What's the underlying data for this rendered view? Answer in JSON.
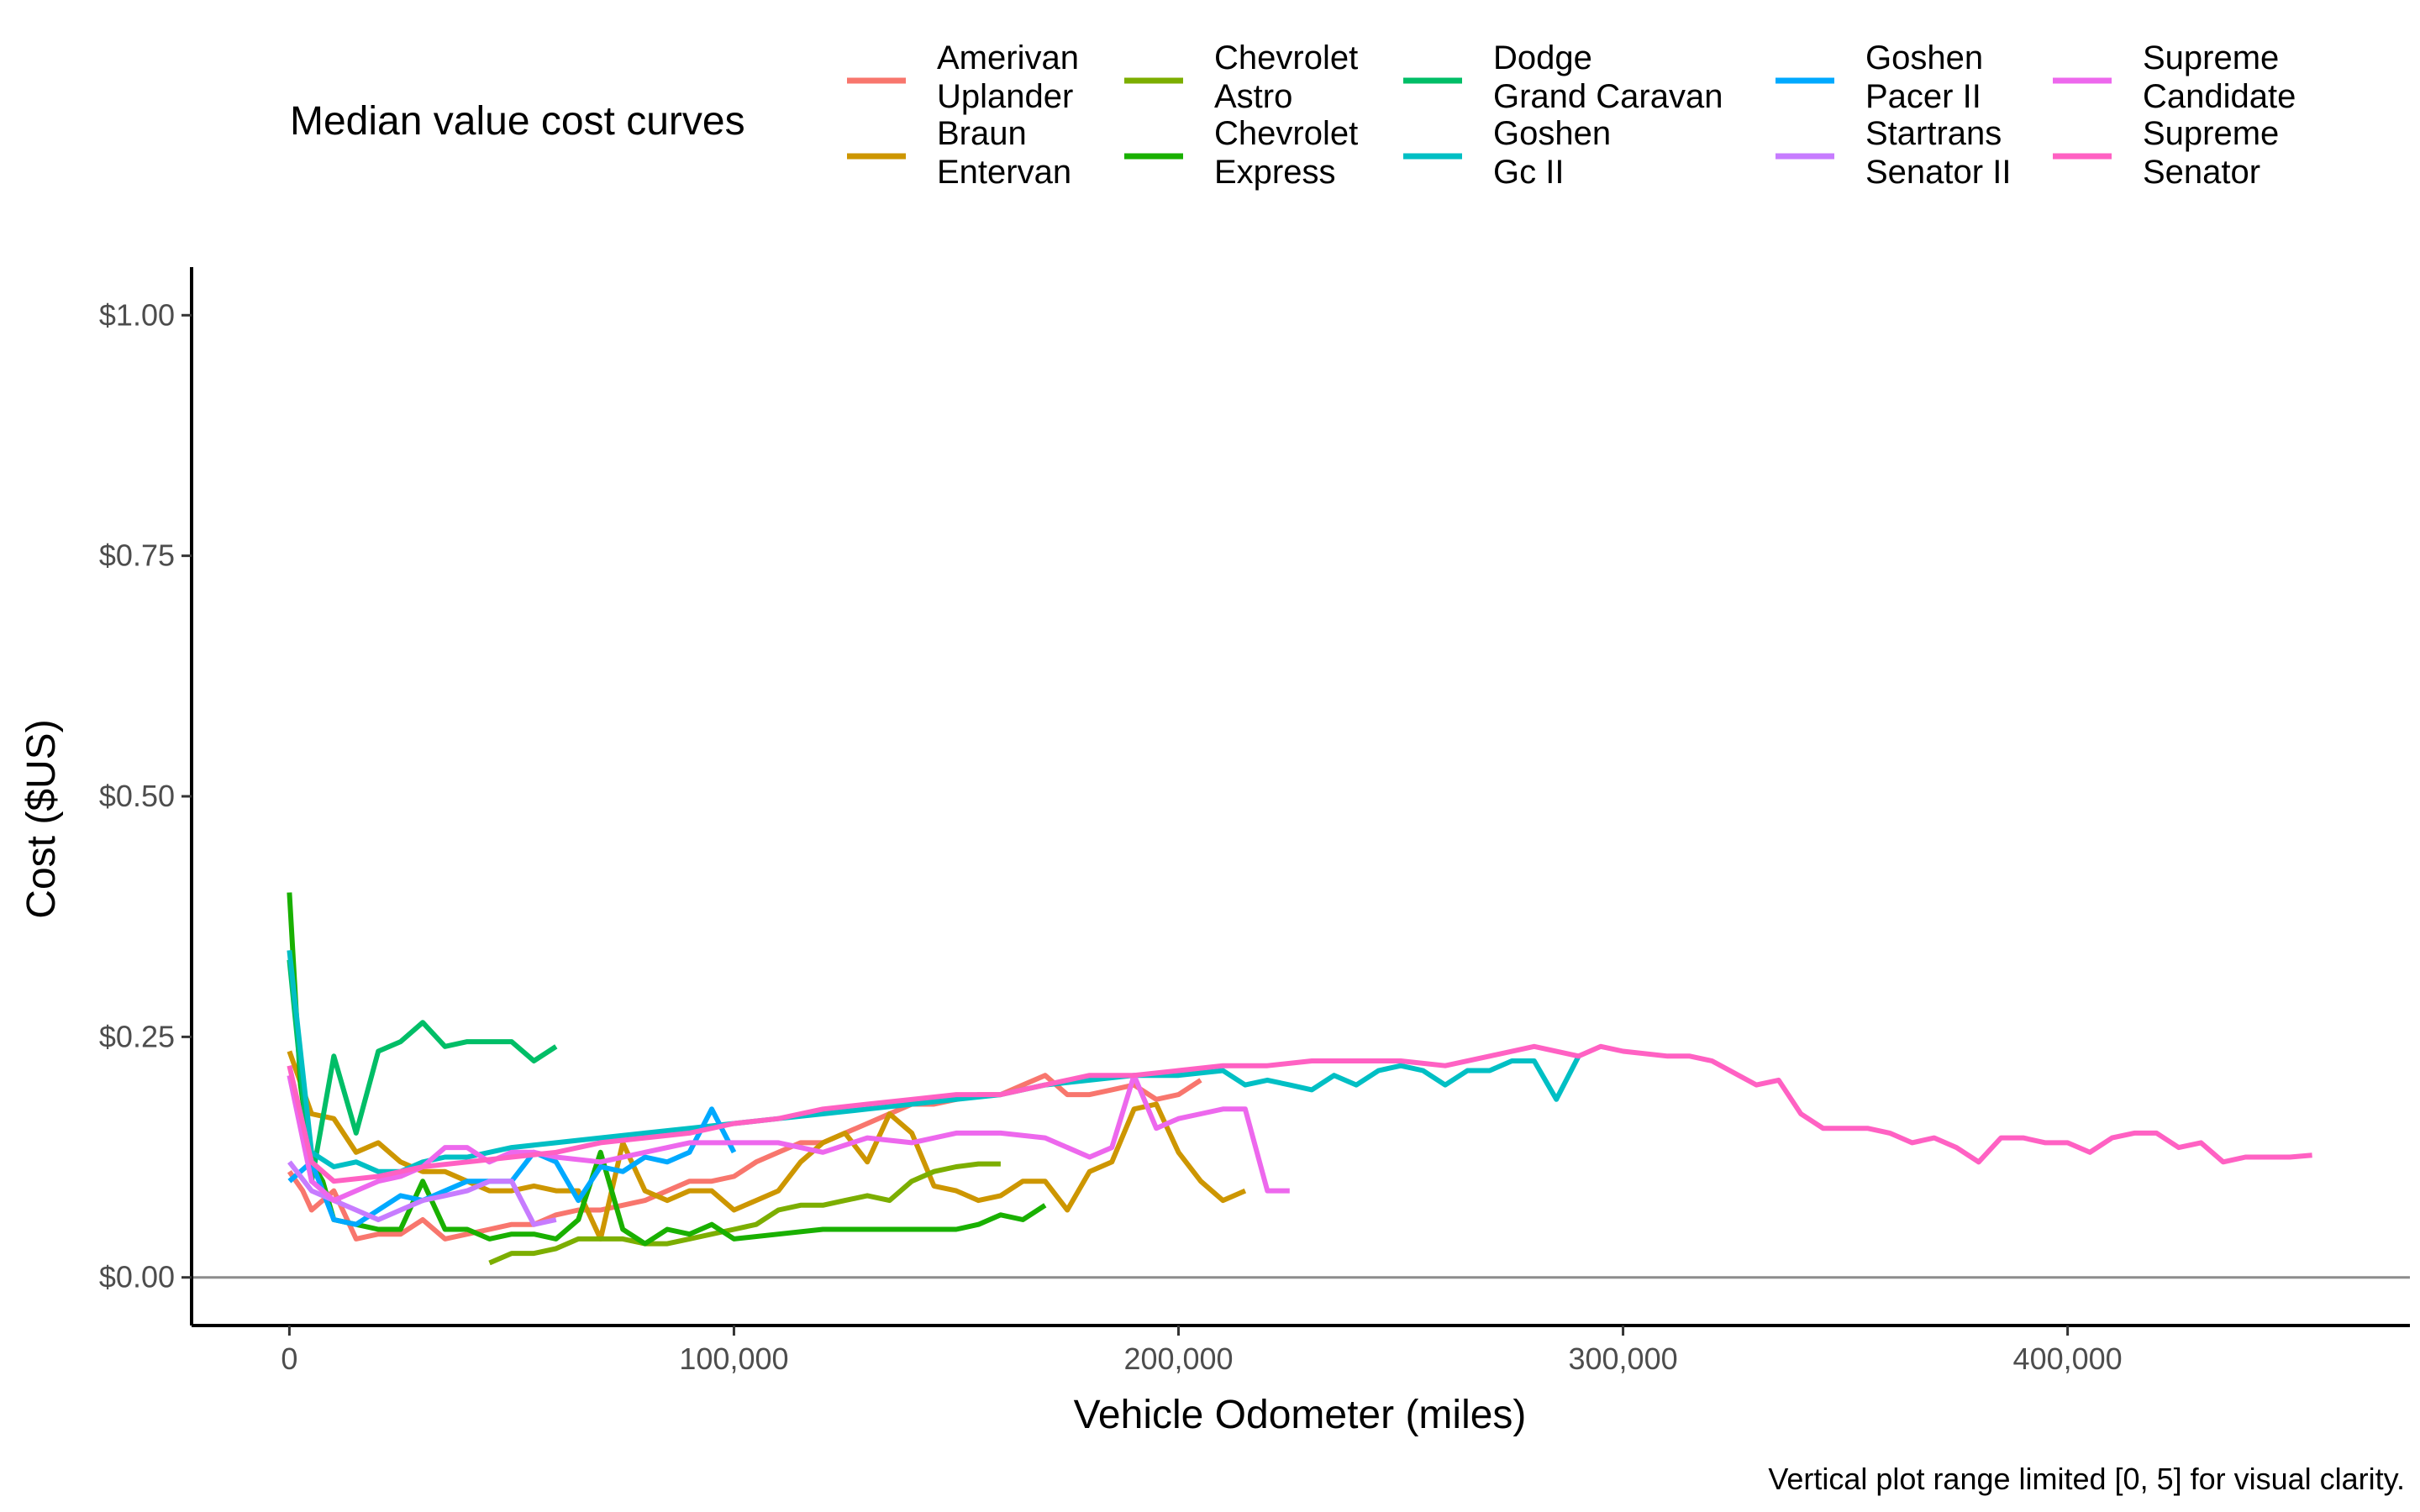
{
  "chart_data": {
    "type": "line",
    "title": "",
    "xlabel": "Vehicle Odometer (miles)",
    "ylabel": "Cost ($US)",
    "caption": "Vertical plot range limited [0, 5] for visual clarity.",
    "xlim": [
      -22000,
      477000
    ],
    "ylim": [
      -0.05,
      1.05
    ],
    "xticks": [
      0,
      100000,
      200000,
      300000,
      400000
    ],
    "xtick_labels": [
      "0",
      "100,000",
      "200,000",
      "300,000",
      "400,000"
    ],
    "yticks": [
      0,
      0.25,
      0.5,
      0.75,
      1.0
    ],
    "ytick_labels": [
      "$0.00",
      "$0.25",
      "$0.50",
      "$0.75",
      "$1.00"
    ],
    "hline": 0,
    "grid": false,
    "legend": {
      "title": "Median value cost curves",
      "position": "top",
      "entries": [
        {
          "line1": "Amerivan",
          "line2": "Uplander"
        },
        {
          "line1": "Braun",
          "line2": "Entervan"
        },
        {
          "line1": "Chevrolet",
          "line2": "Astro"
        },
        {
          "line1": "Chevrolet",
          "line2": "Express"
        },
        {
          "line1": "Dodge",
          "line2": "Grand Caravan"
        },
        {
          "line1": "Goshen",
          "line2": "Gc II"
        },
        {
          "line1": "Goshen",
          "line2": "Pacer II"
        },
        {
          "line1": "Startrans",
          "line2": "Senator II"
        },
        {
          "line1": "Supreme",
          "line2": "Candidate"
        },
        {
          "line1": "Supreme",
          "line2": "Senator"
        }
      ]
    },
    "series": [
      {
        "color": "#F8766D",
        "x": [
          0,
          3000,
          5000,
          10000,
          15000,
          20000,
          25000,
          30000,
          35000,
          40000,
          45000,
          50000,
          55000,
          60000,
          65000,
          70000,
          75000,
          80000,
          85000,
          90000,
          95000,
          100000,
          105000,
          110000,
          115000,
          120000,
          125000,
          130000,
          135000,
          140000,
          145000,
          150000,
          155000,
          160000,
          165000,
          170000,
          175000,
          180000,
          185000,
          190000,
          195000,
          200000,
          205000
        ],
        "y": [
          0.11,
          0.09,
          0.07,
          0.09,
          0.04,
          0.045,
          0.045,
          0.06,
          0.04,
          0.045,
          0.05,
          0.055,
          0.055,
          0.065,
          0.07,
          0.07,
          0.075,
          0.08,
          0.09,
          0.1,
          0.1,
          0.105,
          0.12,
          0.13,
          0.14,
          0.14,
          0.15,
          0.16,
          0.17,
          0.18,
          0.18,
          0.185,
          0.19,
          0.19,
          0.2,
          0.21,
          0.19,
          0.19,
          0.195,
          0.2,
          0.185,
          0.19,
          0.205
        ]
      },
      {
        "color": "#CD9600",
        "x": [
          0,
          5000,
          10000,
          15000,
          20000,
          25000,
          30000,
          35000,
          40000,
          45000,
          50000,
          55000,
          60000,
          65000,
          70000,
          75000,
          80000,
          85000,
          90000,
          95000,
          100000,
          105000,
          110000,
          115000,
          120000,
          125000,
          130000,
          135000,
          140000,
          145000,
          150000,
          155000,
          160000,
          165000,
          170000,
          175000,
          180000,
          185000,
          190000,
          195000,
          200000,
          205000,
          210000,
          215000
        ],
        "y": [
          0.235,
          0.17,
          0.165,
          0.13,
          0.14,
          0.12,
          0.11,
          0.11,
          0.1,
          0.09,
          0.09,
          0.095,
          0.09,
          0.09,
          0.04,
          0.14,
          0.09,
          0.08,
          0.09,
          0.09,
          0.07,
          0.08,
          0.09,
          0.12,
          0.14,
          0.15,
          0.12,
          0.17,
          0.15,
          0.095,
          0.09,
          0.08,
          0.085,
          0.1,
          0.1,
          0.07,
          0.11,
          0.12,
          0.175,
          0.18,
          0.13,
          0.1,
          0.08,
          0.09
        ]
      },
      {
        "color": "#7CAE00",
        "x": [
          45000,
          50000,
          55000,
          60000,
          65000,
          70000,
          75000,
          80000,
          85000,
          90000,
          95000,
          100000,
          105000,
          110000,
          115000,
          120000,
          125000,
          130000,
          135000,
          140000,
          145000,
          150000,
          155000,
          160000
        ],
        "y": [
          0.015,
          0.025,
          0.025,
          0.03,
          0.04,
          0.04,
          0.04,
          0.035,
          0.035,
          0.04,
          0.045,
          0.05,
          0.055,
          0.07,
          0.075,
          0.075,
          0.08,
          0.085,
          0.08,
          0.1,
          0.11,
          0.115,
          0.118,
          0.118
        ]
      },
      {
        "color": "#19B000",
        "x": [
          0,
          2500,
          5000,
          7500,
          10000,
          15000,
          20000,
          25000,
          30000,
          35000,
          40000,
          45000,
          50000,
          55000,
          60000,
          65000,
          70000,
          75000,
          80000,
          85000,
          90000,
          95000,
          100000,
          110000,
          120000,
          130000,
          140000,
          150000,
          155000,
          160000,
          165000,
          170000
        ],
        "y": [
          0.4,
          0.2,
          0.12,
          0.1,
          0.06,
          0.055,
          0.05,
          0.05,
          0.1,
          0.05,
          0.05,
          0.04,
          0.045,
          0.045,
          0.04,
          0.06,
          0.13,
          0.05,
          0.035,
          0.05,
          0.045,
          0.055,
          0.04,
          0.045,
          0.05,
          0.05,
          0.05,
          0.05,
          0.055,
          0.065,
          0.06,
          0.075
        ]
      },
      {
        "color": "#00BE67",
        "x": [
          0,
          5000,
          10000,
          15000,
          20000,
          25000,
          30000,
          35000,
          40000,
          45000,
          50000,
          55000,
          60000
        ],
        "y": [
          0.33,
          0.1,
          0.23,
          0.15,
          0.235,
          0.245,
          0.265,
          0.24,
          0.245,
          0.245,
          0.245,
          0.225,
          0.24
        ]
      },
      {
        "color": "#00BFC4",
        "x": [
          0,
          5000,
          10000,
          15000,
          20000,
          25000,
          30000,
          35000,
          40000,
          45000,
          50000,
          60000,
          70000,
          80000,
          90000,
          100000,
          110000,
          120000,
          130000,
          140000,
          150000,
          160000,
          170000,
          180000,
          190000,
          200000,
          210000,
          215000,
          220000,
          225000,
          230000,
          235000,
          240000,
          245000,
          250000,
          255000,
          260000,
          265000,
          270000,
          275000,
          280000,
          285000,
          290000
        ],
        "y": [
          0.34,
          0.13,
          0.115,
          0.12,
          0.11,
          0.11,
          0.12,
          0.125,
          0.125,
          0.13,
          0.135,
          0.14,
          0.145,
          0.15,
          0.155,
          0.16,
          0.165,
          0.17,
          0.175,
          0.18,
          0.185,
          0.19,
          0.2,
          0.205,
          0.21,
          0.21,
          0.215,
          0.2,
          0.205,
          0.2,
          0.195,
          0.21,
          0.2,
          0.215,
          0.22,
          0.215,
          0.2,
          0.215,
          0.215,
          0.225,
          0.225,
          0.185,
          0.23
        ]
      },
      {
        "color": "#00A9FF",
        "x": [
          0,
          5000,
          10000,
          15000,
          20000,
          25000,
          30000,
          35000,
          40000,
          45000,
          50000,
          55000,
          60000,
          65000,
          70000,
          75000,
          80000,
          85000,
          90000,
          95000,
          100000
        ],
        "y": [
          0.1,
          0.12,
          0.06,
          0.055,
          0.07,
          0.085,
          0.08,
          0.09,
          0.1,
          0.1,
          0.1,
          0.13,
          0.12,
          0.08,
          0.115,
          0.11,
          0.125,
          0.12,
          0.13,
          0.175,
          0.13
        ]
      },
      {
        "color": "#C77CFF",
        "x": [
          0,
          5000,
          10000,
          15000,
          20000,
          25000,
          30000,
          35000,
          40000,
          45000,
          50000,
          55000,
          60000
        ],
        "y": [
          0.12,
          0.09,
          0.08,
          0.07,
          0.06,
          0.07,
          0.08,
          0.085,
          0.09,
          0.1,
          0.1,
          0.055,
          0.06
        ]
      },
      {
        "color": "#ED68ED",
        "x": [
          0,
          5000,
          10000,
          15000,
          20000,
          25000,
          30000,
          35000,
          40000,
          45000,
          50000,
          55000,
          60000,
          70000,
          80000,
          90000,
          100000,
          110000,
          120000,
          130000,
          140000,
          150000,
          160000,
          170000,
          180000,
          185000,
          190000,
          195000,
          200000,
          205000,
          210000,
          215000,
          220000,
          225000
        ],
        "y": [
          0.21,
          0.1,
          0.08,
          0.09,
          0.1,
          0.105,
          0.115,
          0.135,
          0.135,
          0.12,
          0.13,
          0.13,
          0.125,
          0.12,
          0.13,
          0.14,
          0.14,
          0.14,
          0.13,
          0.145,
          0.14,
          0.15,
          0.15,
          0.145,
          0.125,
          0.135,
          0.21,
          0.155,
          0.165,
          0.17,
          0.175,
          0.175,
          0.09,
          0.09
        ]
      },
      {
        "color": "#FF61C3",
        "x": [
          0,
          5000,
          10000,
          20000,
          30000,
          40000,
          50000,
          60000,
          70000,
          80000,
          90000,
          100000,
          110000,
          120000,
          130000,
          140000,
          150000,
          160000,
          170000,
          180000,
          190000,
          200000,
          210000,
          220000,
          230000,
          240000,
          250000,
          260000,
          270000,
          280000,
          290000,
          295000,
          300000,
          310000,
          315000,
          320000,
          330000,
          335000,
          340000,
          345000,
          350000,
          355000,
          360000,
          365000,
          370000,
          375000,
          380000,
          385000,
          390000,
          395000,
          400000,
          405000,
          410000,
          415000,
          420000,
          425000,
          430000,
          435000,
          440000,
          450000,
          455000
        ],
        "y": [
          0.22,
          0.12,
          0.1,
          0.105,
          0.115,
          0.12,
          0.125,
          0.13,
          0.14,
          0.145,
          0.15,
          0.16,
          0.165,
          0.175,
          0.18,
          0.185,
          0.19,
          0.19,
          0.2,
          0.21,
          0.21,
          0.215,
          0.22,
          0.22,
          0.225,
          0.225,
          0.225,
          0.22,
          0.23,
          0.24,
          0.23,
          0.24,
          0.235,
          0.23,
          0.23,
          0.225,
          0.2,
          0.205,
          0.17,
          0.155,
          0.155,
          0.155,
          0.15,
          0.14,
          0.145,
          0.135,
          0.12,
          0.145,
          0.145,
          0.14,
          0.14,
          0.13,
          0.145,
          0.15,
          0.15,
          0.135,
          0.14,
          0.12,
          0.125,
          0.125,
          0.127
        ]
      }
    ]
  }
}
